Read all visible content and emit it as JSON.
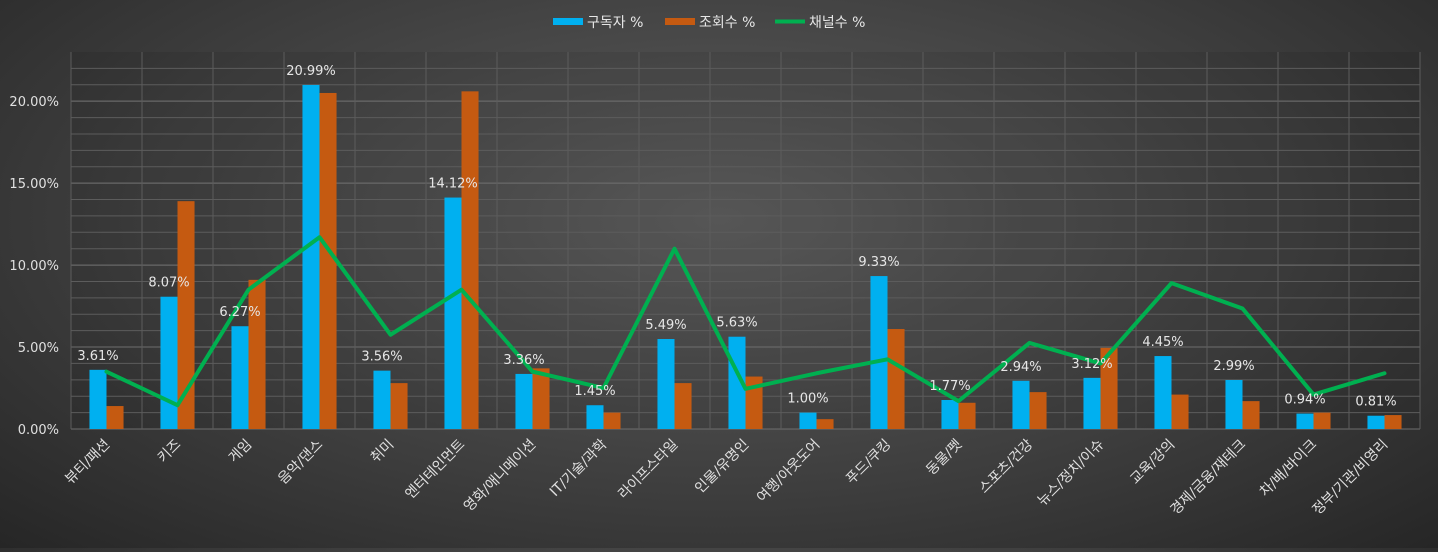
{
  "chart_data": {
    "type": "bar",
    "title": "",
    "xlabel": "",
    "ylabel": "",
    "ylim": [
      0,
      0.23
    ],
    "ytick_values": [
      0,
      0.05,
      0.1,
      0.15,
      0.2
    ],
    "ytick_labels": [
      "0.00%",
      "5.00%",
      "10.00%",
      "15.00%",
      "20.00%"
    ],
    "grid": true,
    "legend_position": "top-center",
    "categories": [
      "뷰티/패션",
      "키즈",
      "게임",
      "음악/댄스",
      "취미",
      "엔터테인먼트",
      "영화/애니메이션",
      "IT/기술/과학",
      "라이프스타일",
      "인물/유명인",
      "여행/아웃도어",
      "푸드/쿠킹",
      "동물/펫",
      "스포츠/건강",
      "뉴스/정치/이슈",
      "교육/강의",
      "경제/금융/재테크",
      "차/배/바이크",
      "정부/기관/비영리"
    ],
    "series": [
      {
        "name": "구독자 %",
        "kind": "bar",
        "color": "#00b0f0",
        "values": [
          0.0361,
          0.0807,
          0.0627,
          0.2099,
          0.0356,
          0.1412,
          0.0336,
          0.0145,
          0.0549,
          0.0563,
          0.01,
          0.0933,
          0.0177,
          0.0294,
          0.0312,
          0.0445,
          0.0299,
          0.0094,
          0.0081
        ],
        "data_labels": [
          "3.61%",
          "8.07%",
          "6.27%",
          "20.99%",
          "3.56%",
          "14.12%",
          "3.36%",
          "1.45%",
          "5.49%",
          "5.63%",
          "1.00%",
          "9.33%",
          "1.77%",
          "2.94%",
          "3.12%",
          "4.45%",
          "2.99%",
          "0.94%",
          "0.81%"
        ]
      },
      {
        "name": "조회수 %",
        "kind": "bar",
        "color": "#c55a11",
        "values": [
          0.014,
          0.139,
          0.091,
          0.205,
          0.028,
          0.206,
          0.037,
          0.01,
          0.028,
          0.032,
          0.006,
          0.061,
          0.016,
          0.0225,
          0.0495,
          0.021,
          0.017,
          0.01,
          0.0085
        ]
      },
      {
        "name": "채널수 %",
        "kind": "line",
        "color": "#00b050",
        "values": [
          0.035,
          0.0145,
          0.085,
          0.117,
          0.0575,
          0.085,
          0.035,
          0.025,
          0.11,
          0.0245,
          0.034,
          0.0425,
          0.017,
          0.0525,
          0.04,
          0.089,
          0.0735,
          0.021,
          0.034
        ]
      }
    ]
  }
}
